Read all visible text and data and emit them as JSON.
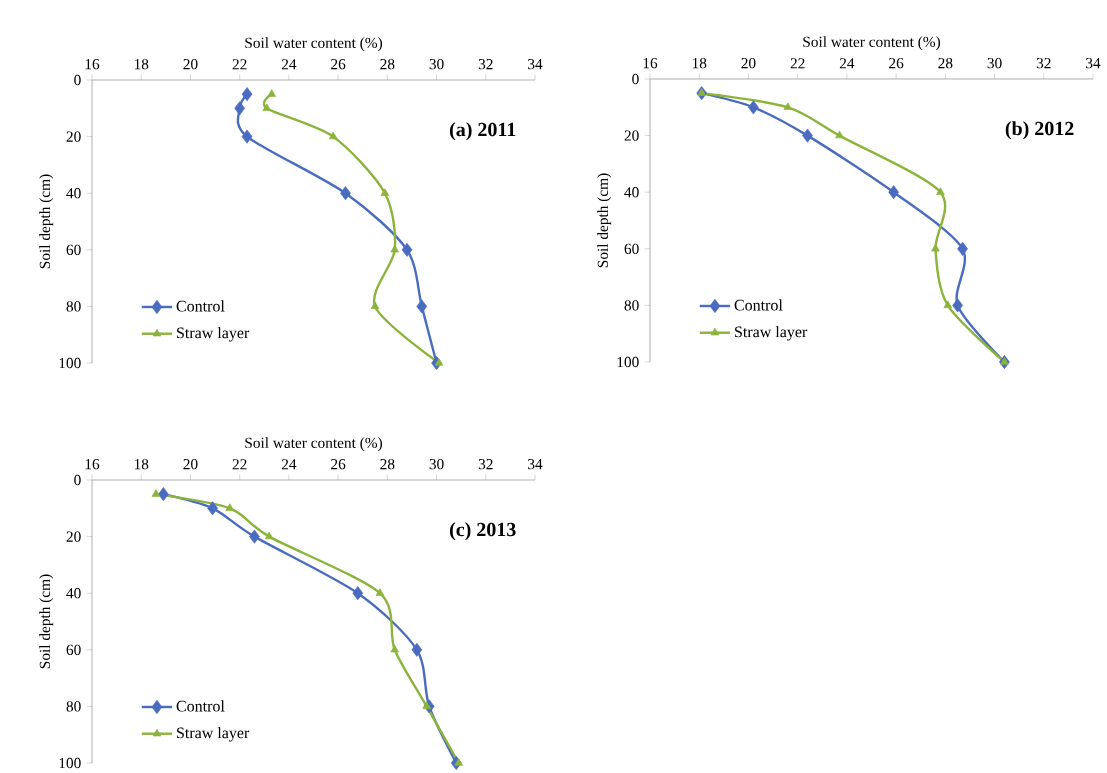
{
  "chart_data": [
    {
      "type": "line",
      "xlabel": "Soil water content (%)",
      "ylabel": "Soil depth (cm)",
      "annotations": [
        "(a) 2011"
      ],
      "xlim": [
        16,
        34
      ],
      "xticks": [
        16,
        18,
        20,
        22,
        24,
        26,
        28,
        30,
        32,
        34
      ],
      "ylim": [
        100,
        0
      ],
      "yticks": [
        0,
        20,
        40,
        60,
        80,
        100
      ],
      "legend": "bottom left",
      "series": [
        {
          "name": "Control",
          "color": "#4a6cc0",
          "marker": "diamond",
          "x": [
            22.3,
            22.0,
            22.3,
            26.3,
            28.8,
            29.4,
            30.0
          ],
          "values": [
            5,
            10,
            20,
            40,
            60,
            80,
            100
          ]
        },
        {
          "name": "Straw layer",
          "color": "#8cb43c",
          "marker": "triangle",
          "x": [
            23.3,
            23.1,
            25.8,
            27.9,
            28.3,
            27.5,
            30.1
          ],
          "values": [
            5,
            10,
            20,
            40,
            60,
            80,
            100
          ]
        }
      ]
    },
    {
      "type": "line",
      "xlabel": "Soil water content (%)",
      "ylabel": "Soil depth (cm)",
      "annotations": [
        "(b) 2012"
      ],
      "xlim": [
        16,
        34
      ],
      "xticks": [
        16,
        18,
        20,
        22,
        24,
        26,
        28,
        30,
        32,
        34
      ],
      "ylim": [
        100,
        0
      ],
      "yticks": [
        0,
        20,
        40,
        60,
        80,
        100
      ],
      "legend": "bottom left",
      "series": [
        {
          "name": "Control",
          "color": "#4a6cc0",
          "marker": "diamond",
          "x": [
            18.1,
            20.2,
            22.4,
            25.9,
            28.7,
            28.5,
            30.4
          ],
          "values": [
            5,
            10,
            20,
            40,
            60,
            80,
            100
          ]
        },
        {
          "name": "Straw layer",
          "color": "#8cb43c",
          "marker": "triangle",
          "x": [
            18.1,
            21.6,
            23.7,
            27.8,
            27.6,
            28.1,
            30.4
          ],
          "values": [
            5,
            10,
            20,
            40,
            60,
            80,
            100
          ]
        }
      ]
    },
    {
      "type": "line",
      "xlabel": "Soil water content (%)",
      "ylabel": "Soil depth (cm)",
      "annotations": [
        "(c) 2013"
      ],
      "xlim": [
        16,
        34
      ],
      "xticks": [
        16,
        18,
        20,
        22,
        24,
        26,
        28,
        30,
        32,
        34
      ],
      "ylim": [
        100,
        0
      ],
      "yticks": [
        0,
        20,
        40,
        60,
        80,
        100
      ],
      "legend": "bottom left",
      "series": [
        {
          "name": "Control",
          "color": "#4a6cc0",
          "marker": "diamond",
          "x": [
            18.9,
            20.9,
            22.6,
            26.8,
            29.2,
            29.7,
            30.8
          ],
          "values": [
            5,
            10,
            20,
            40,
            60,
            80,
            100
          ]
        },
        {
          "name": "Straw layer",
          "color": "#8cb43c",
          "marker": "triangle",
          "x": [
            18.6,
            21.6,
            23.2,
            27.7,
            28.3,
            29.6,
            30.9
          ],
          "values": [
            5,
            10,
            20,
            40,
            60,
            80,
            100
          ]
        }
      ]
    }
  ]
}
